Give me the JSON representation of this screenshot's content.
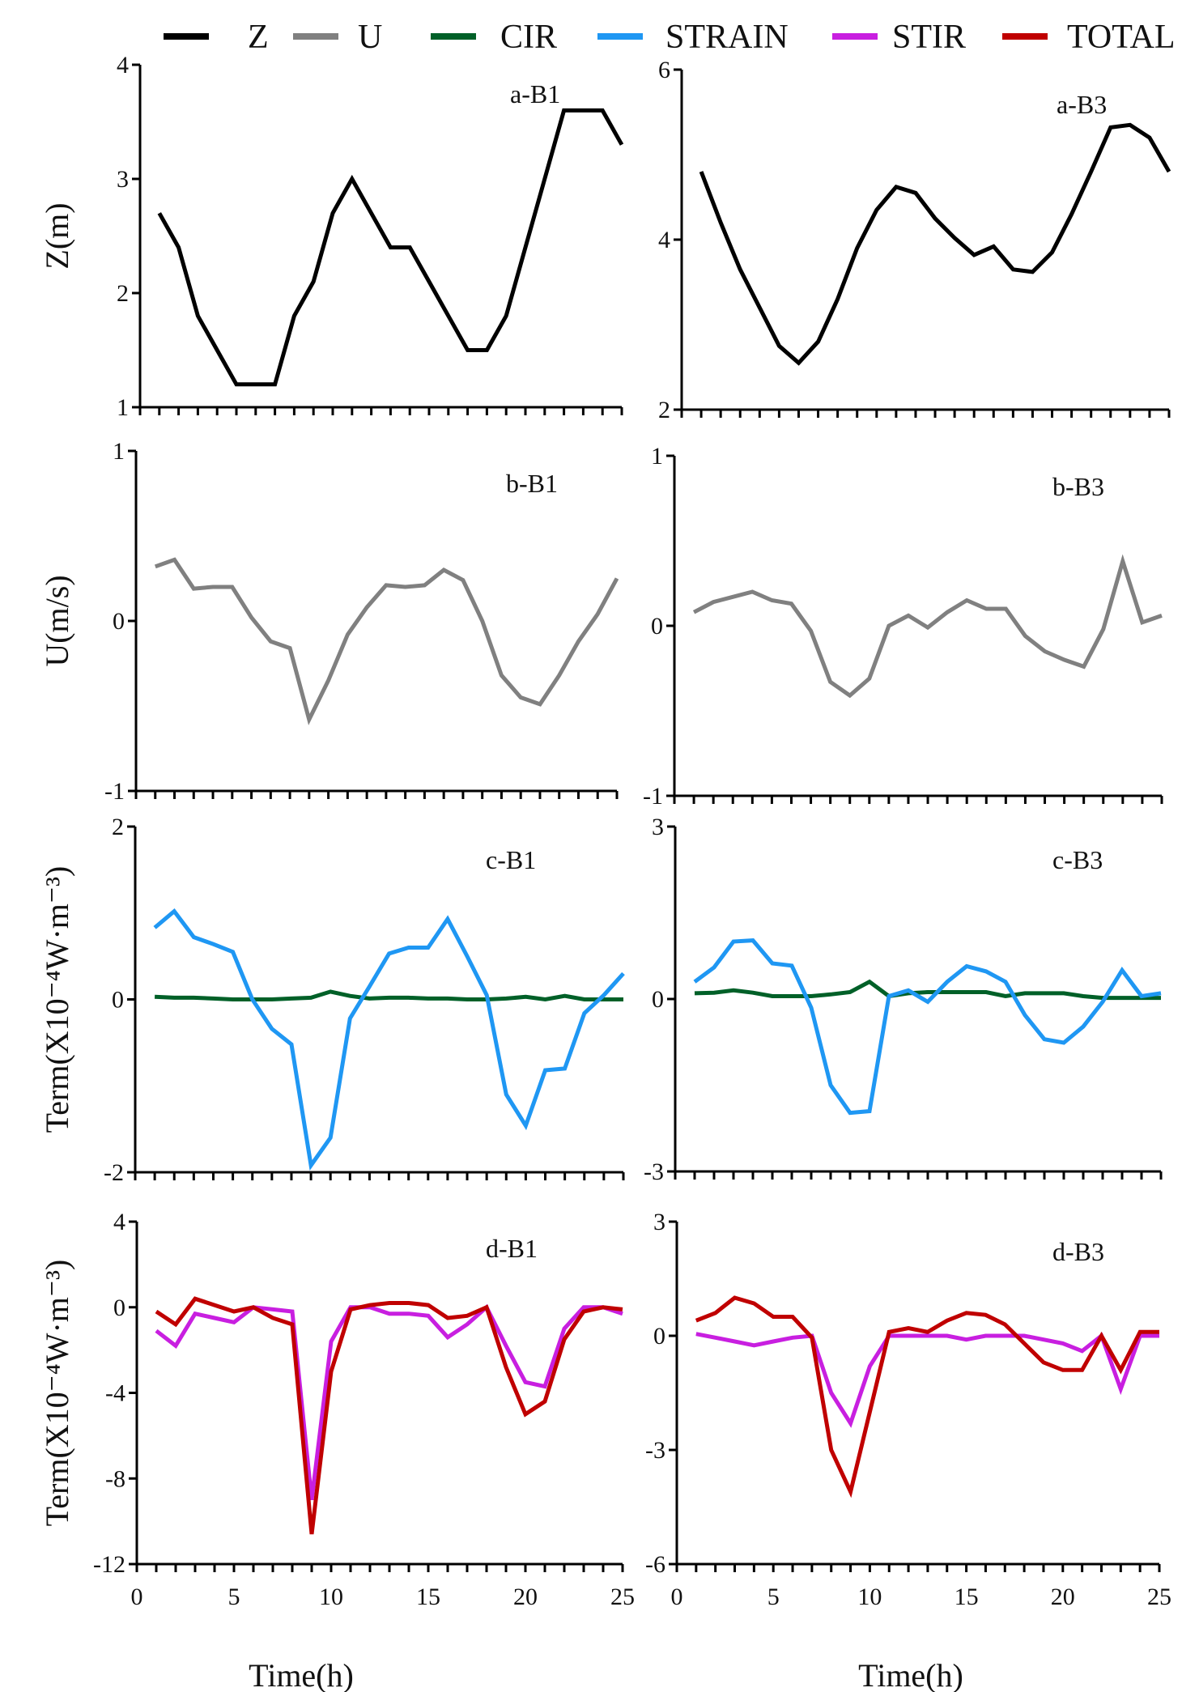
{
  "legend": [
    {
      "key": "Z",
      "label": "Z",
      "color": "#000000"
    },
    {
      "key": "U",
      "label": "U",
      "color": "#808080"
    },
    {
      "key": "CIR",
      "label": "CIR",
      "color": "#006028"
    },
    {
      "key": "STRAIN",
      "label": "STRAIN",
      "color": "#1F97F3"
    },
    {
      "key": "STIR",
      "label": "STIR",
      "color": "#C81FE0"
    },
    {
      "key": "TOTAL",
      "label": "TOTAL",
      "color": "#C00000"
    }
  ],
  "x_axis": {
    "label": "Time(h)",
    "range": [
      0,
      25
    ],
    "ticks": [
      "0",
      "5",
      "10",
      "15",
      "20",
      "25"
    ]
  },
  "chart_data": [
    {
      "id": "a-B1",
      "type": "line",
      "panel_label": "a-B1",
      "ylabel": "Z(m)",
      "ylim": [
        1,
        4
      ],
      "yticks": [
        "1",
        "2",
        "3",
        "4"
      ],
      "show_ylabel": true,
      "series": [
        {
          "key": "Z",
          "name": "Z",
          "x": [
            1,
            2,
            3,
            4,
            5,
            6,
            7,
            8,
            9,
            10,
            11,
            12,
            13,
            14,
            15,
            16,
            17,
            18,
            19,
            20,
            21,
            22,
            23,
            24,
            25
          ],
          "values": [
            2.7,
            2.4,
            1.8,
            1.5,
            1.2,
            1.2,
            1.2,
            1.8,
            2.1,
            2.7,
            3.0,
            2.7,
            2.4,
            2.4,
            2.1,
            1.8,
            1.5,
            1.5,
            1.8,
            2.4,
            3.0,
            3.6,
            3.6,
            3.6,
            3.3
          ]
        }
      ]
    },
    {
      "id": "a-B3",
      "type": "line",
      "panel_label": "a-B3",
      "ylabel": "",
      "ylim": [
        2,
        6
      ],
      "yticks": [
        "2",
        "4",
        "6"
      ],
      "show_ylabel": false,
      "series": [
        {
          "key": "Z",
          "name": "Z",
          "x": [
            1,
            2,
            3,
            4,
            5,
            6,
            7,
            8,
            9,
            10,
            11,
            12,
            13,
            14,
            15,
            16,
            17,
            18,
            19,
            20,
            21,
            22,
            23,
            24,
            25
          ],
          "values": [
            4.8,
            4.2,
            3.65,
            3.2,
            2.75,
            2.55,
            2.8,
            3.3,
            3.9,
            4.35,
            4.62,
            4.55,
            4.25,
            4.02,
            3.82,
            3.92,
            3.65,
            3.62,
            3.85,
            4.3,
            4.8,
            5.32,
            5.35,
            5.2,
            4.8
          ]
        }
      ]
    },
    {
      "id": "b-B1",
      "type": "line",
      "panel_label": "b-B1",
      "ylabel": "U(m/s)",
      "ylim": [
        -1,
        1
      ],
      "yticks": [
        "-1",
        "0",
        "1"
      ],
      "show_ylabel": true,
      "series": [
        {
          "key": "U",
          "name": "U",
          "x": [
            1,
            2,
            3,
            4,
            5,
            6,
            7,
            8,
            9,
            10,
            11,
            12,
            13,
            14,
            15,
            16,
            17,
            18,
            19,
            20,
            21,
            22,
            23,
            24,
            25
          ],
          "values": [
            0.32,
            0.36,
            0.19,
            0.2,
            0.2,
            0.02,
            -0.12,
            -0.16,
            -0.58,
            -0.35,
            -0.08,
            0.08,
            0.21,
            0.2,
            0.21,
            0.3,
            0.24,
            0.0,
            -0.32,
            -0.45,
            -0.49,
            -0.32,
            -0.12,
            0.04,
            0.25
          ]
        }
      ]
    },
    {
      "id": "b-B3",
      "type": "line",
      "panel_label": "b-B3",
      "ylabel": "",
      "ylim": [
        -1,
        1
      ],
      "yticks": [
        "-1",
        "0",
        "1"
      ],
      "show_ylabel": false,
      "series": [
        {
          "key": "U",
          "name": "U",
          "x": [
            1,
            2,
            3,
            4,
            5,
            6,
            7,
            8,
            9,
            10,
            11,
            12,
            13,
            14,
            15,
            16,
            17,
            18,
            19,
            20,
            21,
            22,
            23,
            24,
            25
          ],
          "values": [
            0.08,
            0.14,
            0.17,
            0.2,
            0.15,
            0.13,
            -0.03,
            -0.33,
            -0.41,
            -0.31,
            0.0,
            0.06,
            -0.01,
            0.08,
            0.15,
            0.1,
            0.1,
            -0.06,
            -0.15,
            -0.2,
            -0.24,
            -0.02,
            0.38,
            0.02,
            0.06
          ]
        }
      ]
    },
    {
      "id": "c-B1",
      "type": "line",
      "panel_label": "c-B1",
      "ylabel": "Term(X10⁻⁴W·m⁻³)",
      "ylim": [
        -2,
        2
      ],
      "yticks": [
        "-2",
        "0",
        "2"
      ],
      "show_ylabel": true,
      "series": [
        {
          "key": "CIR",
          "name": "CIR",
          "x": [
            1,
            2,
            3,
            4,
            5,
            6,
            7,
            8,
            9,
            10,
            11,
            12,
            13,
            14,
            15,
            16,
            17,
            18,
            19,
            20,
            21,
            22,
            23,
            24,
            25
          ],
          "values": [
            0.03,
            0.02,
            0.02,
            0.01,
            0.0,
            0.0,
            0.0,
            0.01,
            0.02,
            0.09,
            0.04,
            0.01,
            0.02,
            0.02,
            0.01,
            0.01,
            0.0,
            0.0,
            0.01,
            0.03,
            0.0,
            0.04,
            0.0,
            0.0,
            0.0
          ]
        },
        {
          "key": "STRAIN",
          "name": "STRAIN",
          "x": [
            1,
            2,
            3,
            4,
            5,
            6,
            7,
            8,
            9,
            10,
            11,
            12,
            13,
            14,
            15,
            16,
            17,
            18,
            19,
            20,
            21,
            22,
            23,
            24,
            25
          ],
          "values": [
            0.83,
            1.02,
            0.72,
            0.64,
            0.55,
            0.0,
            -0.34,
            -0.52,
            -1.92,
            -1.6,
            -0.22,
            0.15,
            0.53,
            0.6,
            0.6,
            0.93,
            0.5,
            0.05,
            -1.1,
            -1.46,
            -0.82,
            -0.8,
            -0.16,
            0.05,
            0.3
          ]
        }
      ]
    },
    {
      "id": "c-B3",
      "type": "line",
      "panel_label": "c-B3",
      "ylabel": "",
      "ylim": [
        -3,
        3
      ],
      "yticks": [
        "-3",
        "0",
        "3"
      ],
      "show_ylabel": false,
      "series": [
        {
          "key": "CIR",
          "name": "CIR",
          "x": [
            1,
            2,
            3,
            4,
            5,
            6,
            7,
            8,
            9,
            10,
            11,
            12,
            13,
            14,
            15,
            16,
            17,
            18,
            19,
            20,
            21,
            22,
            23,
            24,
            25
          ],
          "values": [
            0.1,
            0.11,
            0.15,
            0.11,
            0.05,
            0.05,
            0.05,
            0.08,
            0.12,
            0.3,
            0.05,
            0.1,
            0.12,
            0.12,
            0.12,
            0.12,
            0.05,
            0.1,
            0.1,
            0.1,
            0.05,
            0.02,
            0.02,
            0.02,
            0.02
          ]
        },
        {
          "key": "STRAIN",
          "name": "STRAIN",
          "x": [
            1,
            2,
            3,
            4,
            5,
            6,
            7,
            8,
            9,
            10,
            11,
            12,
            13,
            14,
            15,
            16,
            17,
            18,
            19,
            20,
            21,
            22,
            23,
            24,
            25
          ],
          "values": [
            0.3,
            0.55,
            1.0,
            1.02,
            0.62,
            0.58,
            -0.15,
            -1.5,
            -1.98,
            -1.95,
            0.05,
            0.15,
            -0.05,
            0.3,
            0.57,
            0.48,
            0.3,
            -0.28,
            -0.7,
            -0.76,
            -0.48,
            -0.05,
            0.5,
            0.05,
            0.1
          ]
        }
      ]
    },
    {
      "id": "d-B1",
      "type": "line",
      "panel_label": "d-B1",
      "ylabel": "Term(X10⁻⁴W·m⁻³)",
      "ylim": [
        -12,
        4
      ],
      "yticks": [
        "-12",
        "-8",
        "-4",
        "0",
        "4"
      ],
      "show_ylabel": true,
      "series": [
        {
          "key": "STIR",
          "name": "STIR",
          "x": [
            1,
            2,
            3,
            4,
            5,
            6,
            7,
            8,
            9,
            10,
            11,
            12,
            13,
            14,
            15,
            16,
            17,
            18,
            19,
            20,
            21,
            22,
            23,
            24,
            25
          ],
          "values": [
            -1.1,
            -1.8,
            -0.3,
            -0.5,
            -0.7,
            0.0,
            -0.1,
            -0.2,
            -9.0,
            -1.6,
            0.0,
            0.0,
            -0.3,
            -0.3,
            -0.4,
            -1.4,
            -0.8,
            0.0,
            -1.8,
            -3.5,
            -3.7,
            -1.0,
            0.0,
            0.0,
            -0.3
          ]
        },
        {
          "key": "TOTAL",
          "name": "TOTAL",
          "x": [
            1,
            2,
            3,
            4,
            5,
            6,
            7,
            8,
            9,
            10,
            11,
            12,
            13,
            14,
            15,
            16,
            17,
            18,
            19,
            20,
            21,
            22,
            23,
            24,
            25
          ],
          "values": [
            -0.2,
            -0.8,
            0.4,
            0.1,
            -0.2,
            0.0,
            -0.5,
            -0.8,
            -10.6,
            -3.0,
            -0.1,
            0.1,
            0.2,
            0.2,
            0.1,
            -0.5,
            -0.4,
            0.0,
            -2.8,
            -5.0,
            -4.4,
            -1.5,
            -0.2,
            0.0,
            -0.1
          ]
        }
      ]
    },
    {
      "id": "d-B3",
      "type": "line",
      "panel_label": "d-B3",
      "ylabel": "",
      "ylim": [
        -6,
        3
      ],
      "yticks": [
        "-6",
        "-3",
        "0",
        "3"
      ],
      "show_ylabel": false,
      "series": [
        {
          "key": "STIR",
          "name": "STIR",
          "x": [
            1,
            2,
            3,
            4,
            5,
            6,
            7,
            8,
            9,
            10,
            11,
            12,
            13,
            14,
            15,
            16,
            17,
            18,
            19,
            20,
            21,
            22,
            23,
            24,
            25
          ],
          "values": [
            0.05,
            -0.05,
            -0.15,
            -0.25,
            -0.15,
            -0.05,
            0.0,
            -1.5,
            -2.3,
            -0.8,
            0.0,
            0.0,
            0.0,
            0.0,
            -0.1,
            0.0,
            0.0,
            0.0,
            -0.1,
            -0.2,
            -0.4,
            0.0,
            -1.4,
            0.0,
            0.0
          ]
        },
        {
          "key": "TOTAL",
          "name": "TOTAL",
          "x": [
            1,
            2,
            3,
            4,
            5,
            6,
            7,
            8,
            9,
            10,
            11,
            12,
            13,
            14,
            15,
            16,
            17,
            18,
            19,
            20,
            21,
            22,
            23,
            24,
            25
          ],
          "values": [
            0.4,
            0.6,
            1.0,
            0.85,
            0.5,
            0.5,
            -0.05,
            -3.0,
            -4.1,
            -2.0,
            0.1,
            0.2,
            0.1,
            0.4,
            0.6,
            0.55,
            0.3,
            -0.2,
            -0.7,
            -0.9,
            -0.9,
            0.0,
            -0.9,
            0.1,
            0.1
          ]
        }
      ]
    }
  ]
}
